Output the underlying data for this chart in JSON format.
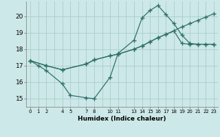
{
  "xlabel": "Humidex (Indice chaleur)",
  "bg_color": "#cde8e8",
  "grid_color": "#a8cccc",
  "line_color": "#2d7068",
  "xlim": [
    -0.5,
    23.5
  ],
  "ylim": [
    14.5,
    20.9
  ],
  "yticks": [
    15,
    16,
    17,
    18,
    19,
    20
  ],
  "xtick_labels": [
    "0",
    "1",
    "2",
    "4",
    "5",
    "7",
    "8",
    "1011",
    "1314",
    "15",
    "16",
    "17",
    "18",
    "19",
    "20",
    "21",
    "2223"
  ],
  "xtick_pos": [
    0,
    1,
    2,
    4,
    5,
    7,
    8,
    10.5,
    13.5,
    15,
    16,
    17,
    18,
    19,
    20,
    21,
    22.5
  ],
  "line1_x": [
    0,
    1,
    2,
    4,
    5,
    7,
    8,
    10,
    11,
    13,
    14,
    15,
    16,
    17,
    18,
    19,
    20,
    21,
    22,
    23
  ],
  "line1_y": [
    17.3,
    17.0,
    16.7,
    15.9,
    15.2,
    15.05,
    15.0,
    16.3,
    17.75,
    18.55,
    19.9,
    20.35,
    20.65,
    20.1,
    19.55,
    18.85,
    18.35,
    18.3,
    18.3,
    18.3
  ],
  "line2_x": [
    0,
    2,
    4,
    7,
    8,
    10,
    11,
    13,
    14,
    15,
    16,
    17,
    19,
    20,
    21,
    22,
    23
  ],
  "line2_y": [
    17.3,
    17.0,
    16.75,
    17.1,
    17.35,
    17.6,
    17.7,
    18.0,
    18.2,
    18.45,
    18.7,
    18.9,
    19.35,
    19.55,
    19.75,
    19.95,
    20.15
  ],
  "line3_x": [
    0,
    2,
    4,
    7,
    8,
    10,
    11,
    13,
    14,
    15,
    16,
    17,
    18,
    19,
    20,
    21,
    22,
    23
  ],
  "line3_y": [
    17.3,
    17.0,
    16.75,
    17.1,
    17.35,
    17.6,
    17.7,
    18.0,
    18.2,
    18.45,
    18.7,
    18.9,
    19.1,
    18.35,
    18.3,
    18.3,
    18.3,
    18.3
  ]
}
